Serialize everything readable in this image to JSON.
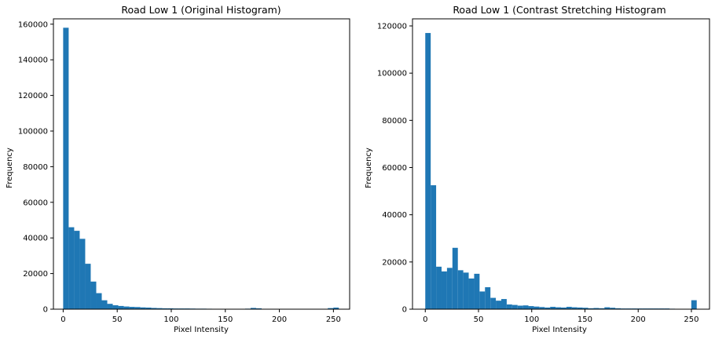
{
  "chart_data": [
    {
      "type": "bar",
      "title": "Road Low 1 (Original Histogram)",
      "xlabel": "Pixel Intensity",
      "ylabel": "Frequency",
      "xlim": [
        -9,
        265
      ],
      "ylim": [
        0,
        163000
      ],
      "xticks": [
        0,
        50,
        100,
        150,
        200,
        250
      ],
      "yticks": [
        0,
        20000,
        40000,
        60000,
        80000,
        100000,
        120000,
        140000,
        160000
      ],
      "bin_width": 5.1,
      "color": "#1f77b4",
      "bins_start": [
        0,
        5.1,
        10.2,
        15.3,
        20.4,
        25.5,
        30.6,
        35.7,
        40.8,
        45.9,
        51,
        56.1,
        61.2,
        66.3,
        71.4,
        76.5,
        81.6,
        86.7,
        91.8,
        96.9,
        102,
        107.1,
        112.2,
        117.3,
        122.4,
        127.5,
        132.6,
        137.7,
        142.8,
        147.9,
        153,
        158.1,
        163.2,
        168.3,
        173.4,
        178.5,
        183.6,
        188.7,
        193.8,
        198.9,
        204,
        209.1,
        214.2,
        219.3,
        224.4,
        229.5,
        234.6,
        239.7,
        244.8,
        249.9
      ],
      "values": [
        158000,
        46000,
        44000,
        39500,
        25500,
        15500,
        9000,
        5000,
        3000,
        2200,
        1800,
        1500,
        1300,
        1200,
        1000,
        900,
        700,
        600,
        500,
        500,
        400,
        400,
        400,
        350,
        300,
        300,
        250,
        200,
        200,
        200,
        200,
        200,
        200,
        300,
        700,
        500,
        200,
        150,
        100,
        100,
        100,
        100,
        100,
        100,
        100,
        100,
        100,
        200,
        600,
        900
      ]
    },
    {
      "type": "bar",
      "title": "Road Low 1 (Contrast Stretching Histogram",
      "xlabel": "Pixel Intensity",
      "ylabel": "Frequency",
      "xlim": [
        -12,
        267
      ],
      "ylim": [
        0,
        123000
      ],
      "xticks": [
        0,
        50,
        100,
        150,
        200,
        250
      ],
      "yticks": [
        0,
        20000,
        40000,
        60000,
        80000,
        100000,
        120000
      ],
      "bin_width": 5.1,
      "color": "#1f77b4",
      "bins_start": [
        0,
        5.1,
        10.2,
        15.3,
        20.4,
        25.5,
        30.6,
        35.7,
        40.8,
        45.9,
        51,
        56.1,
        61.2,
        66.3,
        71.4,
        76.5,
        81.6,
        86.7,
        91.8,
        96.9,
        102,
        107.1,
        112.2,
        117.3,
        122.4,
        127.5,
        132.6,
        137.7,
        142.8,
        147.9,
        153,
        158.1,
        163.2,
        168.3,
        173.4,
        178.5,
        183.6,
        188.7,
        193.8,
        198.9,
        204,
        209.1,
        214.2,
        219.3,
        224.4,
        229.5,
        234.6,
        239.7,
        244.8,
        249.9
      ],
      "values": [
        117000,
        52500,
        18000,
        16000,
        17500,
        26000,
        16500,
        15500,
        13000,
        15000,
        7500,
        9300,
        4800,
        3600,
        4300,
        2000,
        1800,
        1500,
        1600,
        1300,
        1100,
        900,
        700,
        1000,
        800,
        700,
        1000,
        800,
        700,
        600,
        400,
        500,
        400,
        800,
        600,
        400,
        300,
        300,
        300,
        300,
        300,
        300,
        300,
        300,
        300,
        200,
        100,
        100,
        100,
        3800
      ]
    }
  ]
}
